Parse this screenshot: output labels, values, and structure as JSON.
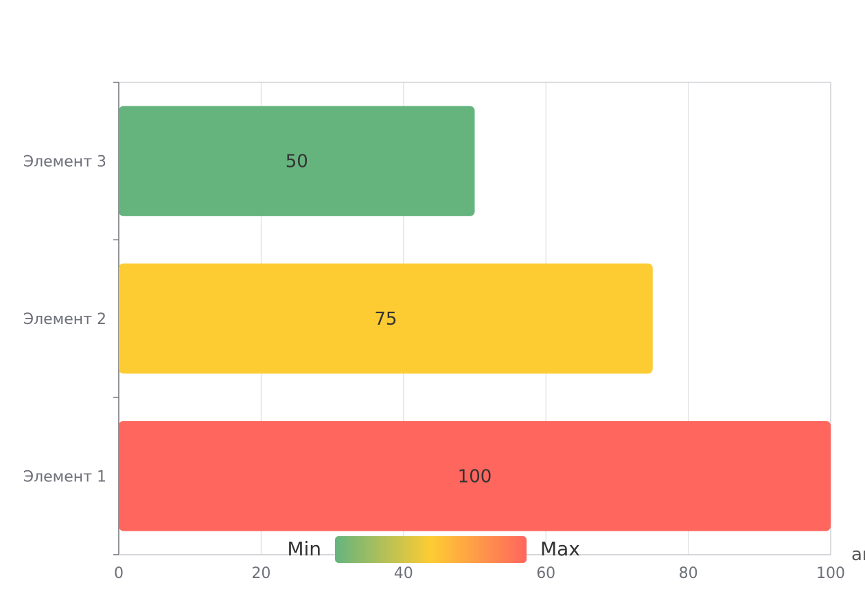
{
  "chart_data": {
    "type": "bar",
    "orientation": "horizontal",
    "categories": [
      "Элемент 1",
      "Элемент 2",
      "Элемент 3"
    ],
    "values": [
      100,
      75,
      50
    ],
    "bar_colors": [
      "#ff665e",
      "#fdcc33",
      "#65b47e"
    ],
    "xlim": [
      0,
      100
    ],
    "x_ticks": [
      0,
      20,
      40,
      60,
      80,
      100
    ],
    "xlabel": "ar",
    "grid": true,
    "visual_map": {
      "min_label": "Min",
      "max_label": "Max",
      "min": 0,
      "max": 100,
      "colors": [
        "#65b47e",
        "#fdcc33",
        "#ff665e"
      ]
    }
  }
}
